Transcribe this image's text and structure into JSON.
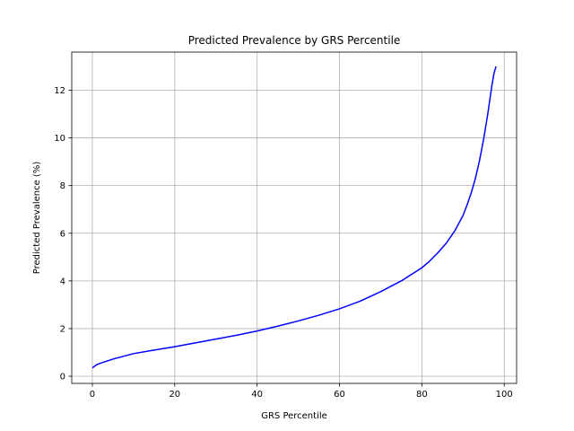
{
  "chart_data": {
    "type": "line",
    "title": "Predicted Prevalence by GRS Percentile",
    "xlabel": "GRS Percentile",
    "ylabel": "Predicted Prevalence (%)",
    "xlim": [
      -5,
      103
    ],
    "ylim": [
      -0.3,
      13.6
    ],
    "xticks": [
      0,
      20,
      40,
      60,
      80,
      100
    ],
    "yticks": [
      0,
      2,
      4,
      6,
      8,
      10,
      12
    ],
    "grid": true,
    "series": [
      {
        "color": "#0000ff",
        "x": [
          0,
          1,
          2,
          5,
          10,
          15,
          20,
          25,
          30,
          35,
          40,
          45,
          50,
          55,
          60,
          65,
          70,
          75,
          80,
          82,
          84,
          86,
          88,
          90,
          91,
          92,
          93,
          94,
          95,
          96,
          97,
          97.5,
          98
        ],
        "y": [
          0.35,
          0.48,
          0.55,
          0.72,
          0.95,
          1.1,
          1.24,
          1.4,
          1.56,
          1.72,
          1.9,
          2.1,
          2.32,
          2.56,
          2.83,
          3.15,
          3.55,
          4.0,
          4.55,
          4.85,
          5.2,
          5.6,
          6.1,
          6.75,
          7.2,
          7.7,
          8.3,
          9.05,
          9.95,
          11.0,
          12.2,
          12.7,
          13.0
        ]
      }
    ]
  }
}
